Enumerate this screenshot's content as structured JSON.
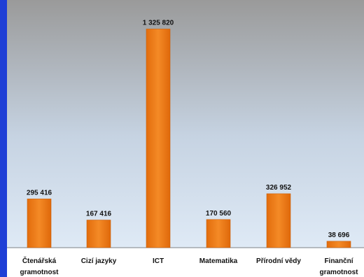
{
  "chart_data": {
    "type": "bar",
    "categories": [
      [
        "Čtenářská",
        "gramotnost"
      ],
      [
        "Cizí jazyky"
      ],
      [
        "ICT"
      ],
      [
        "Matematika"
      ],
      [
        "Přírodní vědy"
      ],
      [
        "Finanční",
        "gramotnost"
      ]
    ],
    "values": [
      295416,
      167416,
      1325820,
      170560,
      326952,
      38696
    ],
    "value_labels": [
      "295 416",
      "167 416",
      "1 325 820",
      "170 560",
      "326 952",
      "38 696"
    ],
    "ylim": [
      0,
      1400000
    ],
    "grid": false,
    "legend": "none",
    "colors": {
      "bar": "#f07d1a",
      "bar_edge": "#c9600c",
      "plot_bg_top": "#9a9a9a",
      "plot_bg_bottom": "#dce8f5",
      "side_strip": "#1f3fd6"
    }
  }
}
